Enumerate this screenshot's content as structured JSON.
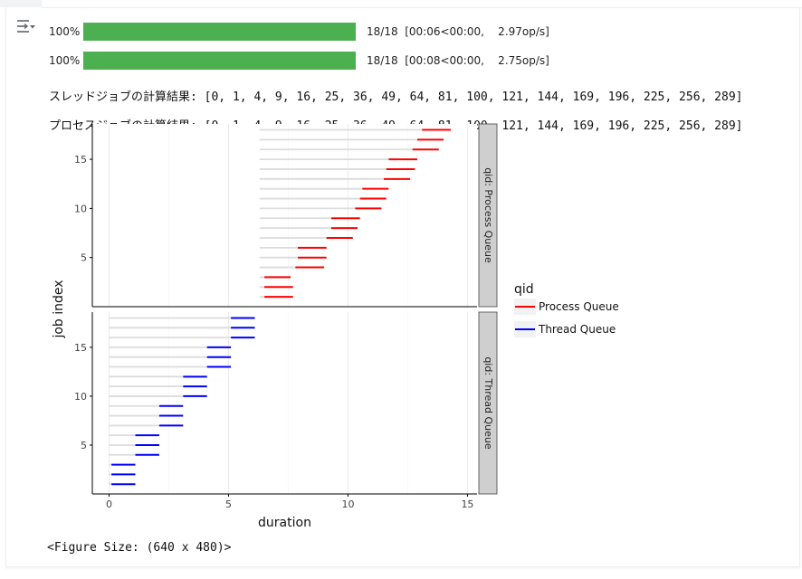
{
  "output_toggle_icon": "output-toggle-icon",
  "progress_bars": [
    {
      "percent_label": "100%",
      "fraction": 1.0,
      "stats": "18/18  [00:06<00:00,    2.97op/s]",
      "color": "#4caf50"
    },
    {
      "percent_label": "100%",
      "fraction": 1.0,
      "stats": "18/18  [00:08<00:00,    2.75op/s]",
      "color": "#4caf50"
    }
  ],
  "stdout_lines": [
    "スレッドジョブの計算結果: [0, 1, 4, 9, 16, 25, 36, 49, 64, 81, 100, 121, 144, 169, 196, 225, 256, 289]",
    "プロセスジョブの計算結果: [0, 1, 4, 9, 16, 25, 36, 49, 64, 81, 100, 121, 144, 169, 196, 225, 256, 289]"
  ],
  "figure_size_text": "<Figure Size: (640 x 480)>",
  "chart_data": {
    "type": "faceted-interval",
    "xlabel": "duration",
    "ylabel": "job index",
    "xlim": [
      -0.7,
      15.4
    ],
    "ylim": [
      0,
      18.6
    ],
    "xticks": [
      0,
      5,
      10,
      15
    ],
    "yticks": [
      5,
      10,
      15
    ],
    "grid": true,
    "legend": {
      "title": "qid",
      "position": "right",
      "entries": [
        {
          "label": "Process Queue",
          "color": "#ff0000"
        },
        {
          "label": "Thread Queue",
          "color": "#0000ff"
        }
      ]
    },
    "facets": [
      {
        "strip_label": "qid: Process Queue",
        "color": "#ff0000",
        "jobs": [
          {
            "index": 1,
            "submit": 6.3,
            "start": 6.5,
            "end": 7.7
          },
          {
            "index": 2,
            "submit": 6.3,
            "start": 6.5,
            "end": 7.7
          },
          {
            "index": 3,
            "submit": 6.3,
            "start": 6.5,
            "end": 7.6
          },
          {
            "index": 4,
            "submit": 6.3,
            "start": 7.8,
            "end": 9.0
          },
          {
            "index": 5,
            "submit": 6.3,
            "start": 7.9,
            "end": 9.1
          },
          {
            "index": 6,
            "submit": 6.3,
            "start": 7.9,
            "end": 9.1
          },
          {
            "index": 7,
            "submit": 6.3,
            "start": 9.1,
            "end": 10.2
          },
          {
            "index": 8,
            "submit": 6.3,
            "start": 9.3,
            "end": 10.4
          },
          {
            "index": 9,
            "submit": 6.3,
            "start": 9.3,
            "end": 10.5
          },
          {
            "index": 10,
            "submit": 6.3,
            "start": 10.3,
            "end": 11.4
          },
          {
            "index": 11,
            "submit": 6.3,
            "start": 10.5,
            "end": 11.6
          },
          {
            "index": 12,
            "submit": 6.3,
            "start": 10.6,
            "end": 11.7
          },
          {
            "index": 13,
            "submit": 6.3,
            "start": 11.5,
            "end": 12.6
          },
          {
            "index": 14,
            "submit": 6.3,
            "start": 11.6,
            "end": 12.8
          },
          {
            "index": 15,
            "submit": 6.3,
            "start": 11.7,
            "end": 12.9
          },
          {
            "index": 16,
            "submit": 6.3,
            "start": 12.7,
            "end": 13.8
          },
          {
            "index": 17,
            "submit": 6.3,
            "start": 12.9,
            "end": 14.0
          },
          {
            "index": 18,
            "submit": 6.3,
            "start": 13.1,
            "end": 14.3
          }
        ]
      },
      {
        "strip_label": "qid: Thread Queue",
        "color": "#0000ff",
        "jobs": [
          {
            "index": 1,
            "submit": 0.0,
            "start": 0.1,
            "end": 1.1
          },
          {
            "index": 2,
            "submit": 0.0,
            "start": 0.1,
            "end": 1.1
          },
          {
            "index": 3,
            "submit": 0.0,
            "start": 0.1,
            "end": 1.1
          },
          {
            "index": 4,
            "submit": 0.0,
            "start": 1.1,
            "end": 2.1
          },
          {
            "index": 5,
            "submit": 0.0,
            "start": 1.1,
            "end": 2.1
          },
          {
            "index": 6,
            "submit": 0.0,
            "start": 1.1,
            "end": 2.1
          },
          {
            "index": 7,
            "submit": 0.0,
            "start": 2.1,
            "end": 3.1
          },
          {
            "index": 8,
            "submit": 0.0,
            "start": 2.1,
            "end": 3.1
          },
          {
            "index": 9,
            "submit": 0.0,
            "start": 2.1,
            "end": 3.1
          },
          {
            "index": 10,
            "submit": 0.0,
            "start": 3.1,
            "end": 4.1
          },
          {
            "index": 11,
            "submit": 0.0,
            "start": 3.1,
            "end": 4.1
          },
          {
            "index": 12,
            "submit": 0.0,
            "start": 3.1,
            "end": 4.1
          },
          {
            "index": 13,
            "submit": 0.0,
            "start": 4.1,
            "end": 5.1
          },
          {
            "index": 14,
            "submit": 0.0,
            "start": 4.1,
            "end": 5.1
          },
          {
            "index": 15,
            "submit": 0.0,
            "start": 4.1,
            "end": 5.1
          },
          {
            "index": 16,
            "submit": 0.0,
            "start": 5.1,
            "end": 6.1
          },
          {
            "index": 17,
            "submit": 0.0,
            "start": 5.1,
            "end": 6.1
          },
          {
            "index": 18,
            "submit": 0.0,
            "start": 5.1,
            "end": 6.1
          }
        ]
      }
    ]
  }
}
